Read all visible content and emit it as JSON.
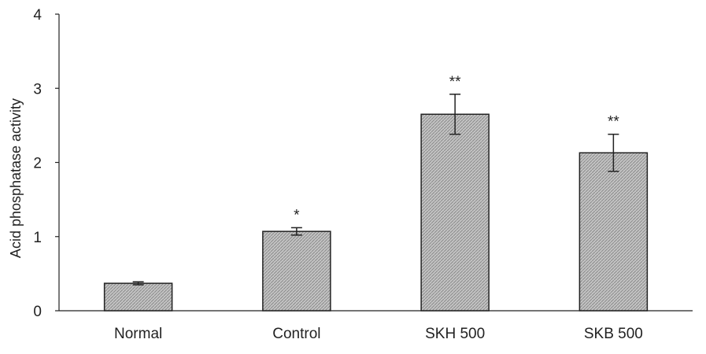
{
  "chart_data": {
    "type": "bar",
    "categories": [
      "Normal",
      "Control",
      "SKH 500",
      "SKB 500"
    ],
    "values": [
      0.37,
      1.07,
      2.65,
      2.13
    ],
    "errors": [
      0.02,
      0.05,
      0.27,
      0.25
    ],
    "significance": [
      "",
      "*",
      "**",
      "**"
    ],
    "title": "",
    "xlabel": "",
    "ylabel": "Acid phosphatase activity",
    "ylim": [
      0,
      4
    ],
    "yticks": [
      "0",
      "1",
      "2",
      "3",
      "4"
    ],
    "grid": false,
    "legend": "none",
    "colors": {
      "bar_fill": "#b8b8b8",
      "bar_edge": "#222222",
      "axis": "#222222"
    }
  }
}
